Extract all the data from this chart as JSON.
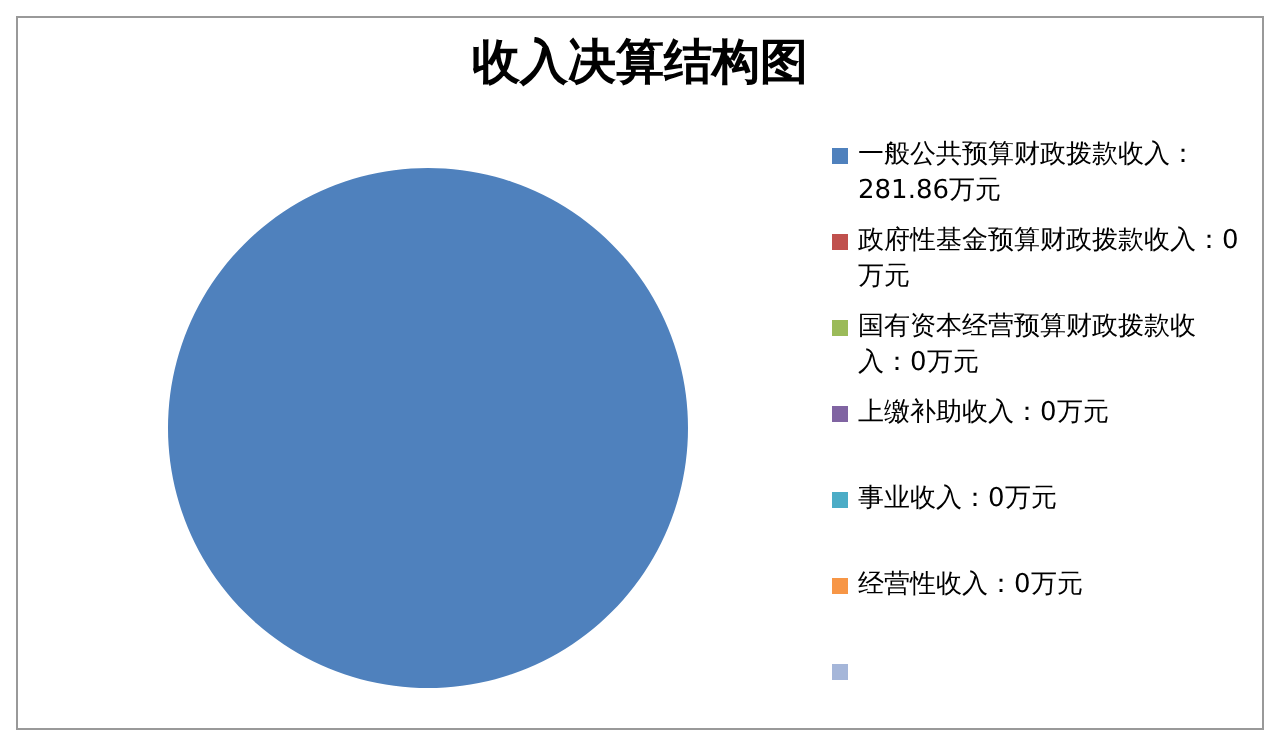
{
  "chart_data": {
    "type": "pie",
    "title": "收入决算结构图",
    "categories": [
      "一般公共预算财政拨款收入：281.86万元",
      "政府性基金预算财政拨款收入：0万元",
      "国有资本经营预算财政拨款收入：0万元",
      "上缴补助收入：0万元",
      "事业收入：0万元",
      "经营性收入：0万元",
      null
    ],
    "values": [
      281.86,
      0,
      0,
      0,
      0,
      0,
      0
    ],
    "colors": [
      "#4f81bd",
      "#c0504d",
      "#9bbb59",
      "#8064a2",
      "#4bacc6",
      "#f79646",
      "#a5b6d9"
    ],
    "legend": "right"
  }
}
